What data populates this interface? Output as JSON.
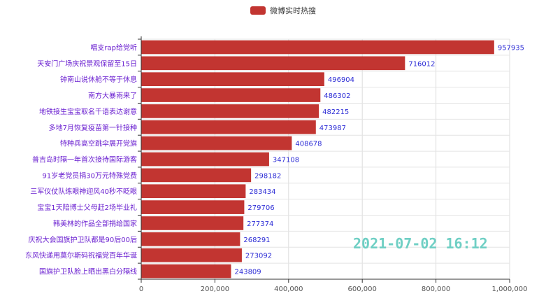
{
  "chart_data": {
    "type": "bar",
    "orientation": "horizontal",
    "legend": [
      "微博实时热搜"
    ],
    "legend_placement": "top-center",
    "categories": [
      "唱支rap给党听",
      "天安门广场庆祝景观保留至15日",
      "钟南山说休舱不等于休息",
      "南方大暴雨来了",
      "地铁接生宝宝取名千语表达谢意",
      "多地7月恢复疫苗第一针接种",
      "特种兵高空跳伞展开党旗",
      "普吉岛时隔一年首次接待国际游客",
      "91岁老党员捐30万元特殊党费",
      "三军仪仗队练眼神迎风40秒不眨眼",
      "宝宝1天陪博士父母赶2场毕业礼",
      "韩美林的作品全部捐给国家",
      "庆祝大会国旗护卫队都是90后00后",
      "东风快递用莫尔斯码祝福党百年华诞",
      "国旗护卫队脸上晒出黑白分隔线"
    ],
    "values": [
      957935,
      716012,
      496904,
      486302,
      482215,
      473987,
      408678,
      347108,
      298182,
      283434,
      279706,
      277374,
      268291,
      273092,
      243809
    ],
    "x_ticks": [
      "0",
      "200,000",
      "400,000",
      "600,000",
      "800,000",
      "1,000,000"
    ],
    "xlim": [
      0,
      1000000
    ],
    "grid": true,
    "annotation": "2021-07-02  16:12",
    "colors": {
      "bar": "#c23531",
      "label": "#2d2dd6",
      "category": "#6a1fd0",
      "annotation": "#6fcfc4"
    }
  }
}
